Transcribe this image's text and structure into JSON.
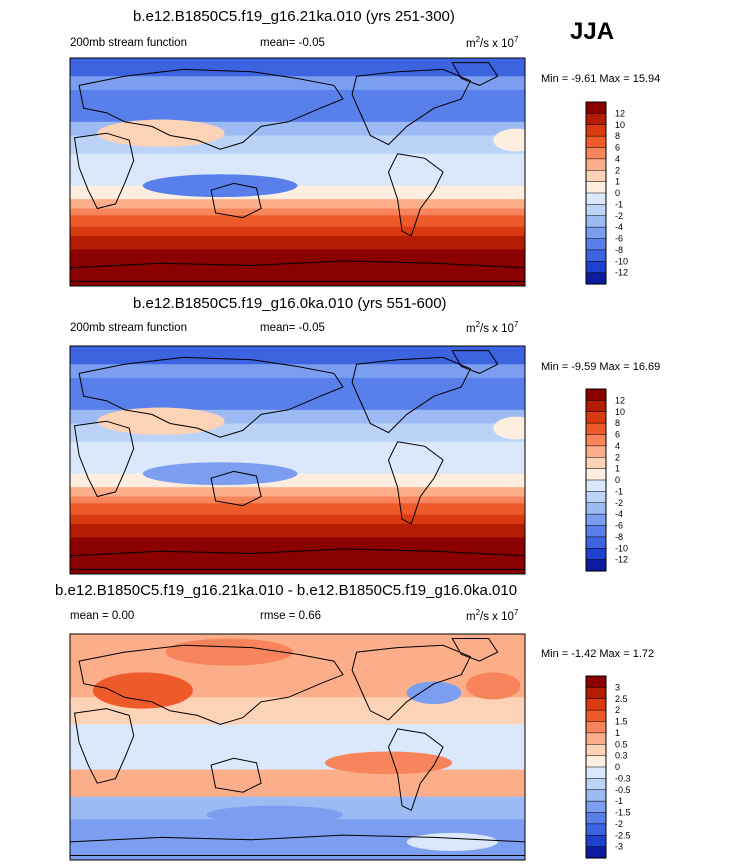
{
  "season": "JJA",
  "panels": [
    {
      "title": "b.e12.B1850C5.f19_g16.21ka.010 (yrs 251-300)",
      "left_label": "200mb stream function",
      "center_label": "mean=  -0.05",
      "units_main": "m",
      "units_exp": "2",
      "units_tail": "/s x 10",
      "units_pow": "7",
      "min_max": "Min =  -9.61 Max =  15.94"
    },
    {
      "title": "b.e12.B1850C5.f19_g16.0ka.010 (yrs 551-600)",
      "left_label": "200mb stream function",
      "center_label": "mean=  -0.05",
      "units_main": "m",
      "units_exp": "2",
      "units_tail": "/s x 10",
      "units_pow": "7",
      "min_max": "Min =  -9.59 Max =  16.69"
    },
    {
      "title": "b.e12.B1850C5.f19_g16.21ka.010 - b.e12.B1850C5.f19_g16.0ka.010",
      "left_label": "mean =   0.00",
      "center_label": "rmse =   0.66",
      "units_main": "m",
      "units_exp": "2",
      "units_tail": "/s x 10",
      "units_pow": "7",
      "min_max": "Min =  -1.42 Max =   1.72"
    }
  ],
  "chart_data": [
    {
      "type": "heatmap",
      "title": "b.e12.B1850C5.f19_g16.21ka.010 (yrs 251-300)",
      "variable": "200mb stream function",
      "mean": -0.05,
      "min": -9.61,
      "max": 15.94,
      "colorbar_levels": [
        "12",
        "10",
        "8",
        "6",
        "4",
        "2",
        "1",
        "0",
        "-1",
        "-2",
        "-4",
        "-6",
        "-8",
        "-10",
        "-12"
      ],
      "colors": [
        "#8b0000",
        "#b31c00",
        "#d93a10",
        "#ef5a2a",
        "#f7845a",
        "#fcae8a",
        "#fdd3b8",
        "#fdeee0",
        "#dbe8fb",
        "#bcd3f8",
        "#9cbaf4",
        "#7b9ef0",
        "#5980ea",
        "#3c63e0",
        "#1f41cf",
        "#0b1d9e"
      ],
      "regions": {
        "north_high_latitudes": "#3c63e0",
        "northern_midlatitudes": "#5980ea",
        "subtropics_north": "#9cbaf4",
        "asia_anticyclone": "#fdd3b8",
        "equator": "#dbe8fb",
        "west_pacific_trough": "#5980ea",
        "southern_subtropics": "#f7845a",
        "southern_midlatitudes": "#d93a10",
        "southern_high_latitudes": "#8b0000"
      }
    },
    {
      "type": "heatmap",
      "title": "b.e12.B1850C5.f19_g16.0ka.010 (yrs 551-600)",
      "variable": "200mb stream function",
      "mean": -0.05,
      "min": -9.59,
      "max": 16.69,
      "colorbar_levels": [
        "12",
        "10",
        "8",
        "6",
        "4",
        "2",
        "1",
        "0",
        "-1",
        "-2",
        "-4",
        "-6",
        "-8",
        "-10",
        "-12"
      ],
      "colors": [
        "#8b0000",
        "#b31c00",
        "#d93a10",
        "#ef5a2a",
        "#f7845a",
        "#fcae8a",
        "#fdd3b8",
        "#fdeee0",
        "#dbe8fb",
        "#bcd3f8",
        "#9cbaf4",
        "#7b9ef0",
        "#5980ea",
        "#3c63e0",
        "#1f41cf",
        "#0b1d9e"
      ],
      "regions": {
        "north_high_latitudes": "#3c63e0",
        "northern_midlatitudes": "#5980ea",
        "subtropics_north": "#9cbaf4",
        "asia_anticyclone": "#fdd3b8",
        "equator": "#dbe8fb",
        "west_pacific_trough": "#7b9ef0",
        "southern_subtropics": "#f7845a",
        "southern_midlatitudes": "#d93a10",
        "southern_high_latitudes": "#8b0000"
      }
    },
    {
      "type": "heatmap",
      "title": "b.e12.B1850C5.f19_g16.21ka.010 - b.e12.B1850C5.f19_g16.0ka.010",
      "mean": 0.0,
      "rmse": 0.66,
      "min": -1.42,
      "max": 1.72,
      "colorbar_levels": [
        "3",
        "2.5",
        "2",
        "1.5",
        "1",
        "0.5",
        "0.3",
        "0",
        "-0.3",
        "-0.5",
        "-1",
        "-1.5",
        "-2",
        "-2.5",
        "-3"
      ],
      "colors": [
        "#8b0000",
        "#b31c00",
        "#d93a10",
        "#ef5a2a",
        "#f7845a",
        "#fcae8a",
        "#fdd3b8",
        "#fdeee0",
        "#dbe8fb",
        "#bcd3f8",
        "#9cbaf4",
        "#7b9ef0",
        "#5980ea",
        "#3c63e0",
        "#1f41cf",
        "#0b1d9e"
      ],
      "regions": {
        "north_high_latitudes": "#fcae8a",
        "northern_midlatitudes": "#fcae8a",
        "central_asia": "#ef5a2a",
        "north_america": "#7b9ef0",
        "north_atlantic": "#f7845a",
        "subtropics_north": "#fdd3b8",
        "equator": "#dbe8fb",
        "southern_subtropics": "#fcae8a",
        "southern_midlatitudes": "#9cbaf4",
        "southern_high_latitudes": "#7b9ef0"
      }
    }
  ]
}
